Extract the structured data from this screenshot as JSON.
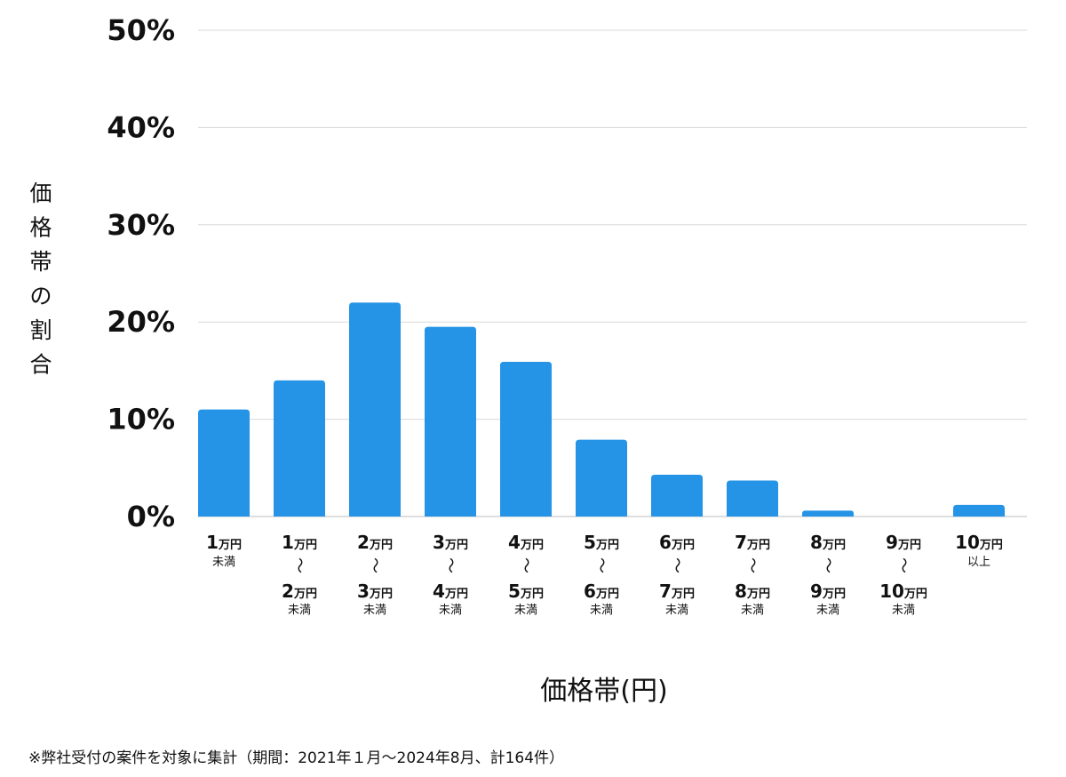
{
  "chart_data": {
    "type": "bar",
    "xlabel": "価格帯(円)",
    "ylabel": "価格帯の割合",
    "ylim": [
      0,
      50
    ],
    "yticks": [
      "0%",
      "10%",
      "20%",
      "30%",
      "40%",
      "50%"
    ],
    "ytick_values": [
      0,
      10,
      20,
      30,
      40,
      50
    ],
    "grid": true,
    "bar_color": "#2593e6",
    "categories": [
      {
        "top": "1",
        "top_unit": "万円",
        "tilde": "",
        "bottom": "",
        "bottom_unit": "",
        "suffix": "未満"
      },
      {
        "top": "1",
        "top_unit": "万円",
        "tilde": "〜",
        "bottom": "2",
        "bottom_unit": "万円",
        "suffix": "未満"
      },
      {
        "top": "2",
        "top_unit": "万円",
        "tilde": "〜",
        "bottom": "3",
        "bottom_unit": "万円",
        "suffix": "未満"
      },
      {
        "top": "3",
        "top_unit": "万円",
        "tilde": "〜",
        "bottom": "4",
        "bottom_unit": "万円",
        "suffix": "未満"
      },
      {
        "top": "4",
        "top_unit": "万円",
        "tilde": "〜",
        "bottom": "5",
        "bottom_unit": "万円",
        "suffix": "未満"
      },
      {
        "top": "5",
        "top_unit": "万円",
        "tilde": "〜",
        "bottom": "6",
        "bottom_unit": "万円",
        "suffix": "未満"
      },
      {
        "top": "6",
        "top_unit": "万円",
        "tilde": "〜",
        "bottom": "7",
        "bottom_unit": "万円",
        "suffix": "未満"
      },
      {
        "top": "7",
        "top_unit": "万円",
        "tilde": "〜",
        "bottom": "8",
        "bottom_unit": "万円",
        "suffix": "未満"
      },
      {
        "top": "8",
        "top_unit": "万円",
        "tilde": "〜",
        "bottom": "9",
        "bottom_unit": "万円",
        "suffix": "未満"
      },
      {
        "top": "9",
        "top_unit": "万円",
        "tilde": "〜",
        "bottom": "10",
        "bottom_unit": "万円",
        "suffix": "未満"
      },
      {
        "top": "10",
        "top_unit": "万円",
        "tilde": "",
        "bottom": "",
        "bottom_unit": "",
        "suffix": "以上"
      }
    ],
    "values": [
      11.0,
      14.0,
      22.0,
      19.5,
      15.9,
      7.9,
      4.3,
      3.7,
      0.6,
      0.0,
      1.2
    ]
  },
  "footnote": "※弊社受付の案件を対象に集計（期間：2021年１月〜2024年8月、計164件）"
}
